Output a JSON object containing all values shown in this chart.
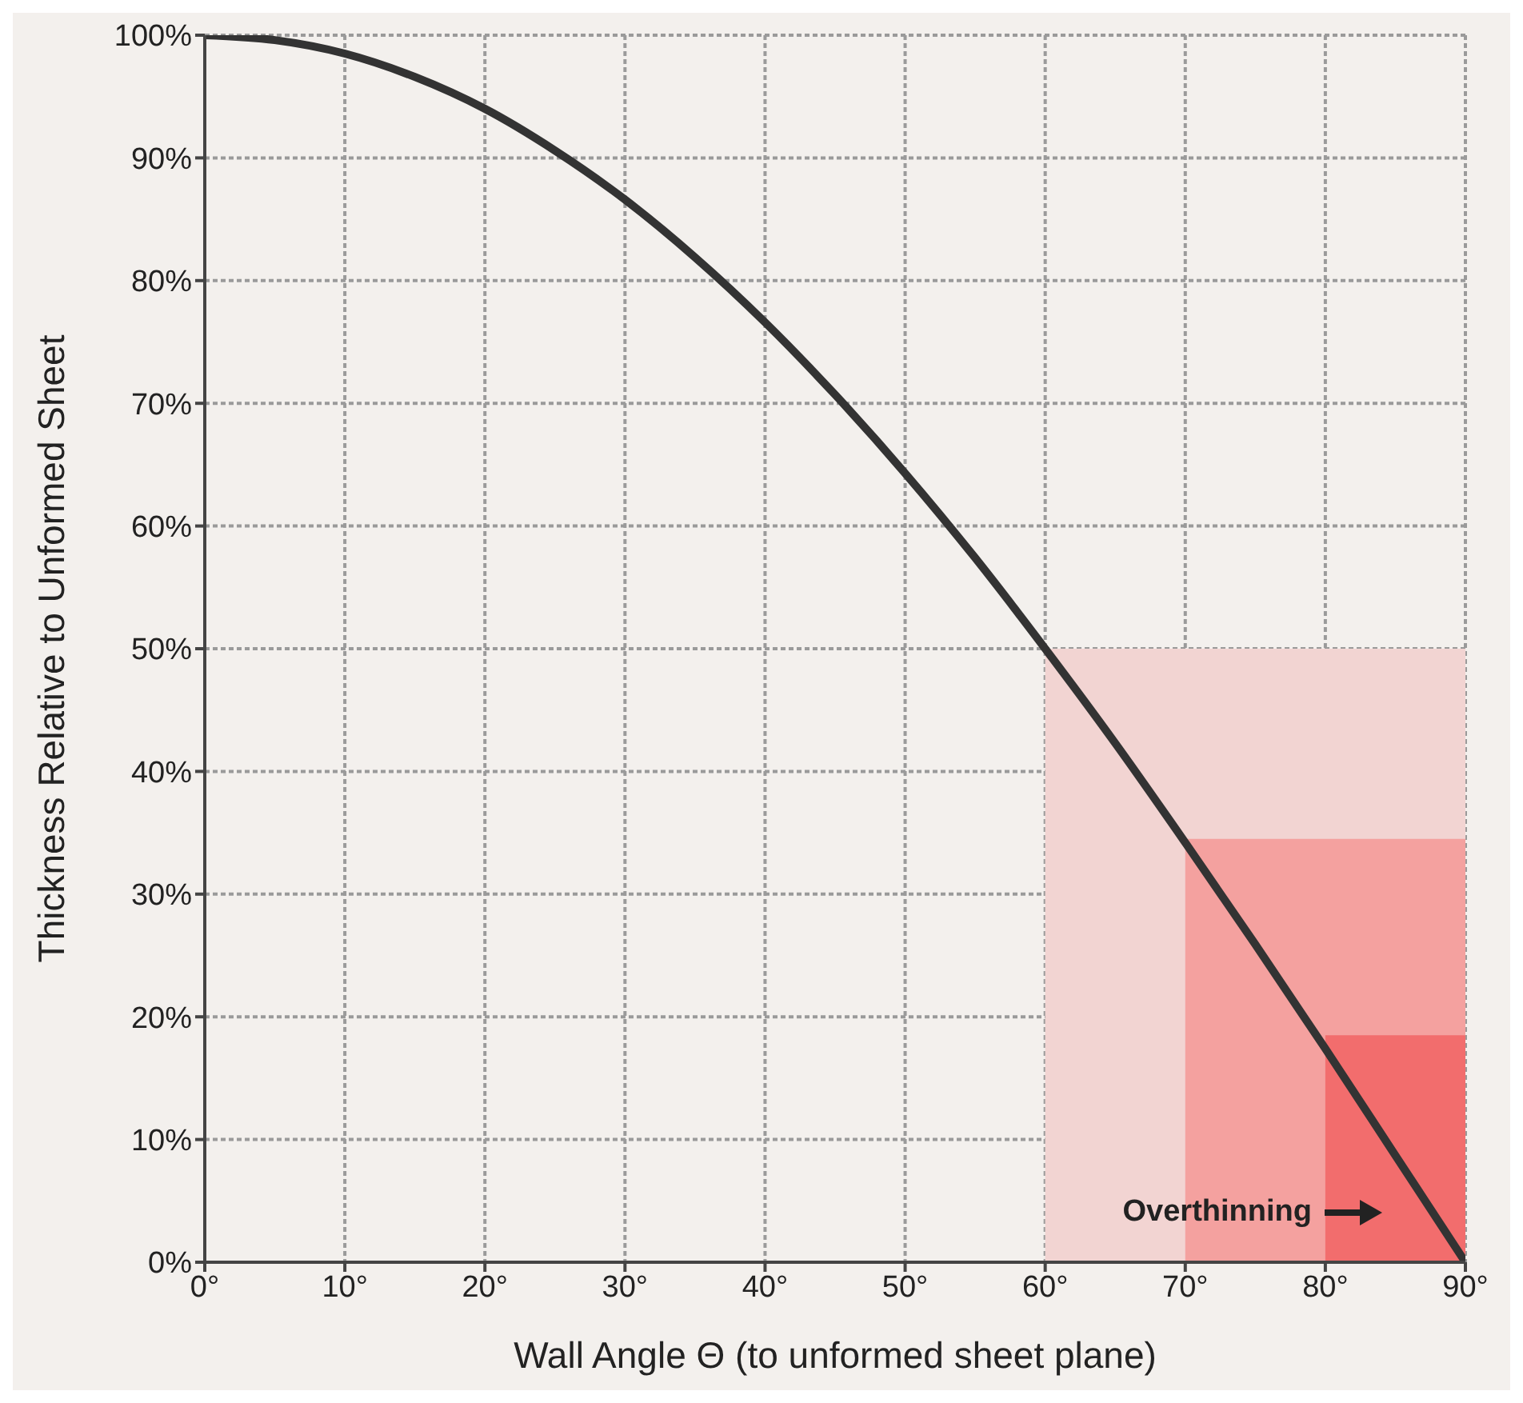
{
  "chart_data": {
    "type": "line",
    "xlabel": "Wall Angle Θ (to unformed sheet plane)",
    "ylabel": "Thickness Relative to Unformed Sheet",
    "xlim": [
      0,
      90
    ],
    "ylim": [
      0,
      100
    ],
    "xticks": [
      {
        "value": 0,
        "label": "0°"
      },
      {
        "value": 10,
        "label": "10°"
      },
      {
        "value": 20,
        "label": "20°"
      },
      {
        "value": 30,
        "label": "30°"
      },
      {
        "value": 40,
        "label": "40°"
      },
      {
        "value": 50,
        "label": "50°"
      },
      {
        "value": 60,
        "label": "60°"
      },
      {
        "value": 70,
        "label": "70°"
      },
      {
        "value": 80,
        "label": "80°"
      },
      {
        "value": 90,
        "label": "90°"
      }
    ],
    "yticks": [
      {
        "value": 0,
        "label": "0%"
      },
      {
        "value": 10,
        "label": "10%"
      },
      {
        "value": 20,
        "label": "20%"
      },
      {
        "value": 30,
        "label": "30%"
      },
      {
        "value": 40,
        "label": "40%"
      },
      {
        "value": 50,
        "label": "50%"
      },
      {
        "value": 60,
        "label": "60%"
      },
      {
        "value": 70,
        "label": "70%"
      },
      {
        "value": 80,
        "label": "80%"
      },
      {
        "value": 90,
        "label": "90%"
      },
      {
        "value": 100,
        "label": "100%"
      }
    ],
    "grid": true,
    "marker": "none",
    "line_style": "solid",
    "series": [
      {
        "type": "area",
        "color": "#f2d4d2",
        "x": [
          60,
          90
        ],
        "values": [
          50,
          50
        ]
      },
      {
        "type": "area",
        "color": "#f4a19f",
        "x": [
          70,
          90
        ],
        "values": [
          34.5,
          34.5
        ]
      },
      {
        "type": "area",
        "color": "#f26d6d",
        "x": [
          80,
          90
        ],
        "values": [
          18.5,
          18.5
        ]
      },
      {
        "color": "#333333",
        "x": [
          0,
          5,
          10,
          15,
          20,
          25,
          30,
          35,
          40,
          45,
          50,
          55,
          60,
          65,
          70,
          75,
          80,
          85,
          90
        ],
        "values": [
          100,
          99.6,
          98.5,
          96.6,
          94,
          90.6,
          86.6,
          81.9,
          76.6,
          70.7,
          64.3,
          57.4,
          50,
          42.3,
          34.2,
          25.9,
          17.4,
          8.7,
          0
        ]
      }
    ],
    "annotations": [
      "Overthinning"
    ]
  }
}
